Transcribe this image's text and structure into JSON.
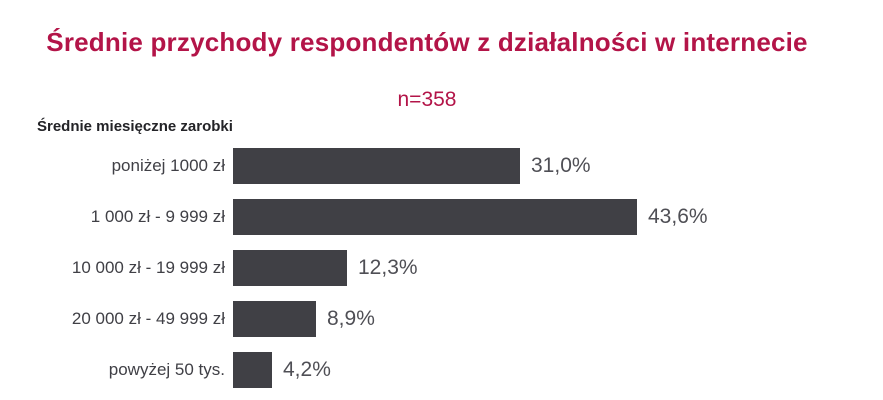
{
  "header": {
    "title": "Średnie przychody respondentów z działalności w internecie",
    "subtitle": "n=358"
  },
  "colors": {
    "accent": "#b31448",
    "bar": "#404045",
    "category_text": "#404046",
    "value_text": "#4f4f55",
    "axis_text": "#232327"
  },
  "chart_data": {
    "type": "bar",
    "orientation": "horizontal",
    "title": "Średnie przychody respondentów z działalności w internecie",
    "subtitle": "n=358",
    "axis_label": "Średnie miesięczne zarobki",
    "categories": [
      "poniżej 1000 zł",
      "1 000 zł - 9 999 zł",
      "10 000 zł - 19 999 zł",
      "20 000 zł - 49 999 zł",
      "powyżej 50 tys."
    ],
    "values": [
      31.0,
      43.6,
      12.3,
      8.9,
      4.2
    ],
    "value_labels": [
      "31,0%",
      "43,6%",
      "12,3%",
      "8,9%",
      "4,2%"
    ],
    "unit": "%",
    "xlim": [
      0,
      46
    ],
    "grid": false,
    "legend": false
  }
}
